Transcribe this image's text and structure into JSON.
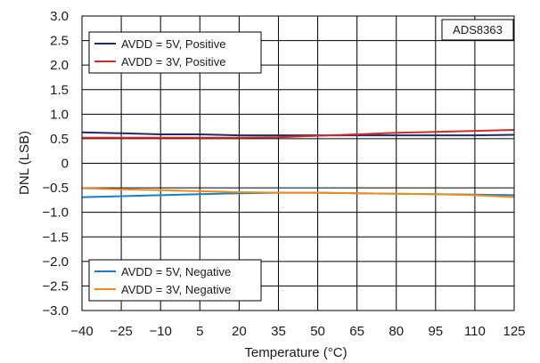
{
  "chart_data": {
    "type": "line",
    "xlabel": "Temperature (°C)",
    "ylabel": "DNL (LSB)",
    "annotation": "ADS8363",
    "xlim": [
      -40,
      125
    ],
    "ylim": [
      -3.0,
      3.0
    ],
    "x_ticks": [
      -40,
      -25,
      -10,
      5,
      20,
      35,
      50,
      65,
      80,
      95,
      110,
      125
    ],
    "y_ticks": [
      3.0,
      2.5,
      2.0,
      1.5,
      1.0,
      0.5,
      0,
      -0.5,
      -1.0,
      -1.5,
      -2.0,
      -2.5,
      -3.0
    ],
    "x_tick_labels": [
      "−40",
      "−25",
      "−10",
      "5",
      "20",
      "35",
      "50",
      "65",
      "80",
      "95",
      "110",
      "125"
    ],
    "y_tick_labels": [
      "3.0",
      "2.5",
      "2.0",
      "1.5",
      "1.0",
      "0.5",
      "0",
      "−0.5",
      "−1.0",
      "−1.5",
      "−2.0",
      "−2.5",
      "−3.0"
    ],
    "grid": true,
    "legends": [
      {
        "placement": "top-left",
        "entries": [
          "AVDD = 5V, Positive",
          "AVDD = 3V, Positive"
        ]
      },
      {
        "placement": "bottom-left",
        "entries": [
          "AVDD = 5V, Negative",
          "AVDD = 3V, Negative"
        ]
      }
    ],
    "x": [
      -40,
      -25,
      -10,
      5,
      20,
      35,
      50,
      65,
      80,
      95,
      110,
      125
    ],
    "series": [
      {
        "name": "AVDD = 5V, Positive",
        "color": "#1f2a6b",
        "values": [
          0.63,
          0.61,
          0.59,
          0.59,
          0.57,
          0.57,
          0.57,
          0.57,
          0.57,
          0.57,
          0.57,
          0.58
        ]
      },
      {
        "name": "AVDD = 3V, Positive",
        "color": "#d42a2a",
        "values": [
          0.52,
          0.52,
          0.52,
          0.52,
          0.52,
          0.53,
          0.56,
          0.59,
          0.62,
          0.64,
          0.66,
          0.68
        ]
      },
      {
        "name": "AVDD = 5V, Negative",
        "color": "#1b7fc1",
        "values": [
          -0.69,
          -0.67,
          -0.65,
          -0.63,
          -0.61,
          -0.6,
          -0.6,
          -0.61,
          -0.62,
          -0.63,
          -0.64,
          -0.65
        ]
      },
      {
        "name": "AVDD = 3V, Negative",
        "color": "#f08a1e",
        "values": [
          -0.51,
          -0.53,
          -0.55,
          -0.57,
          -0.59,
          -0.6,
          -0.6,
          -0.61,
          -0.62,
          -0.63,
          -0.65,
          -0.69
        ]
      }
    ]
  }
}
